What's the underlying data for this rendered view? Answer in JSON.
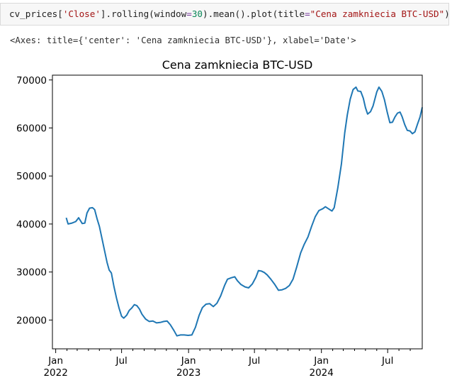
{
  "cell": {
    "code_parts": {
      "p1": "cv_prices[",
      "key": "'Close'",
      "p2": "].rolling(window",
      "eq": "=",
      "num": "30",
      "p3": ").mean().plot(title",
      "eq2": "=",
      "title_str": "\"Cena zamkniecia BTC-USD\"",
      "p4": ")"
    },
    "output": "<Axes: title={'center': 'Cena zamkniecia BTC-USD'}, xlabel='Date'>"
  },
  "colors": {
    "line": "#1f77b4",
    "axis": "#000000",
    "cell_bg": "#f7f7f7"
  },
  "chart_data": {
    "type": "line",
    "title": "Cena zamkniecia BTC-USD",
    "xlabel": "",
    "ylabel": "",
    "x_range": [
      "2021-12-23",
      "2024-10-04"
    ],
    "ylim": [
      14000,
      71000
    ],
    "grid": false,
    "legend": "none",
    "y_ticks": [
      20000,
      30000,
      40000,
      50000,
      60000,
      70000
    ],
    "y_tick_labels": [
      "20000",
      "30000",
      "40000",
      "50000",
      "60000",
      "70000"
    ],
    "x_major_ticks": [
      {
        "date": "2022-01-01",
        "label": "Jan\n2022"
      },
      {
        "date": "2022-07-01",
        "label": "Jul"
      },
      {
        "date": "2023-01-01",
        "label": "Jan\n2023"
      },
      {
        "date": "2023-07-01",
        "label": "Jul"
      },
      {
        "date": "2024-01-01",
        "label": "Jan\n2024"
      },
      {
        "date": "2024-07-01",
        "label": "Jul"
      }
    ],
    "x_minor_ticks": [
      "2022-02-01",
      "2022-03-01",
      "2022-04-01",
      "2022-05-01",
      "2022-06-01",
      "2022-08-01",
      "2022-09-01",
      "2022-10-01",
      "2022-11-01",
      "2022-12-01",
      "2023-02-01",
      "2023-03-01",
      "2023-04-01",
      "2023-05-01",
      "2023-06-01",
      "2023-08-01",
      "2023-09-01",
      "2023-10-01",
      "2023-11-01",
      "2023-12-01",
      "2024-02-01",
      "2024-03-01",
      "2024-04-01",
      "2024-05-01",
      "2024-06-01",
      "2024-08-01",
      "2024-09-01"
    ],
    "series": [
      {
        "points": [
          [
            "2022-01-30",
            41300
          ],
          [
            "2022-02-04",
            40000
          ],
          [
            "2022-02-15",
            40200
          ],
          [
            "2022-02-25",
            40500
          ],
          [
            "2022-03-05",
            41300
          ],
          [
            "2022-03-15",
            40100
          ],
          [
            "2022-03-22",
            40200
          ],
          [
            "2022-03-28",
            42300
          ],
          [
            "2022-04-04",
            43300
          ],
          [
            "2022-04-12",
            43400
          ],
          [
            "2022-04-18",
            43000
          ],
          [
            "2022-04-25",
            41000
          ],
          [
            "2022-05-01",
            39500
          ],
          [
            "2022-05-08",
            37000
          ],
          [
            "2022-05-15",
            34500
          ],
          [
            "2022-05-22",
            32000
          ],
          [
            "2022-05-28",
            30400
          ],
          [
            "2022-06-03",
            29800
          ],
          [
            "2022-06-10",
            27000
          ],
          [
            "2022-06-17",
            24600
          ],
          [
            "2022-06-24",
            22500
          ],
          [
            "2022-07-01",
            20800
          ],
          [
            "2022-07-07",
            20400
          ],
          [
            "2022-07-15",
            21000
          ],
          [
            "2022-07-22",
            22000
          ],
          [
            "2022-07-29",
            22500
          ],
          [
            "2022-08-05",
            23200
          ],
          [
            "2022-08-12",
            23000
          ],
          [
            "2022-08-19",
            22300
          ],
          [
            "2022-08-26",
            21200
          ],
          [
            "2022-09-05",
            20200
          ],
          [
            "2022-09-15",
            19700
          ],
          [
            "2022-09-25",
            19800
          ],
          [
            "2022-10-05",
            19400
          ],
          [
            "2022-10-15",
            19500
          ],
          [
            "2022-10-25",
            19700
          ],
          [
            "2022-11-03",
            19800
          ],
          [
            "2022-11-12",
            19000
          ],
          [
            "2022-11-22",
            17800
          ],
          [
            "2022-11-30",
            16700
          ],
          [
            "2022-12-10",
            16900
          ],
          [
            "2022-12-20",
            16900
          ],
          [
            "2022-12-31",
            16800
          ],
          [
            "2023-01-10",
            16900
          ],
          [
            "2023-01-20",
            18500
          ],
          [
            "2023-01-30",
            21000
          ],
          [
            "2023-02-08",
            22600
          ],
          [
            "2023-02-18",
            23300
          ],
          [
            "2023-02-28",
            23400
          ],
          [
            "2023-03-10",
            22800
          ],
          [
            "2023-03-20",
            23500
          ],
          [
            "2023-03-30",
            25000
          ],
          [
            "2023-04-10",
            27200
          ],
          [
            "2023-04-18",
            28500
          ],
          [
            "2023-04-28",
            28800
          ],
          [
            "2023-05-08",
            29000
          ],
          [
            "2023-05-15",
            28200
          ],
          [
            "2023-05-25",
            27400
          ],
          [
            "2023-06-05",
            26900
          ],
          [
            "2023-06-15",
            26700
          ],
          [
            "2023-06-25",
            27500
          ],
          [
            "2023-07-05",
            28900
          ],
          [
            "2023-07-12",
            30300
          ],
          [
            "2023-07-20",
            30200
          ],
          [
            "2023-07-28",
            29900
          ],
          [
            "2023-08-05",
            29400
          ],
          [
            "2023-08-15",
            28500
          ],
          [
            "2023-08-25",
            27500
          ],
          [
            "2023-09-05",
            26200
          ],
          [
            "2023-09-15",
            26300
          ],
          [
            "2023-09-25",
            26600
          ],
          [
            "2023-10-05",
            27200
          ],
          [
            "2023-10-15",
            28500
          ],
          [
            "2023-10-25",
            31000
          ],
          [
            "2023-11-05",
            34000
          ],
          [
            "2023-11-15",
            35800
          ],
          [
            "2023-11-25",
            37300
          ],
          [
            "2023-12-05",
            39500
          ],
          [
            "2023-12-15",
            41500
          ],
          [
            "2023-12-25",
            42800
          ],
          [
            "2024-01-05",
            43200
          ],
          [
            "2024-01-12",
            43600
          ],
          [
            "2024-01-20",
            43200
          ],
          [
            "2024-01-30",
            42700
          ],
          [
            "2024-02-05",
            43400
          ],
          [
            "2024-02-15",
            47500
          ],
          [
            "2024-02-25",
            52500
          ],
          [
            "2024-03-05",
            59000
          ],
          [
            "2024-03-12",
            62700
          ],
          [
            "2024-03-20",
            66000
          ],
          [
            "2024-03-28",
            68000
          ],
          [
            "2024-04-05",
            68500
          ],
          [
            "2024-04-10",
            67700
          ],
          [
            "2024-04-18",
            67600
          ],
          [
            "2024-04-25",
            66200
          ],
          [
            "2024-05-01",
            64200
          ],
          [
            "2024-05-07",
            62900
          ],
          [
            "2024-05-15",
            63400
          ],
          [
            "2024-05-22",
            64600
          ],
          [
            "2024-06-01",
            67500
          ],
          [
            "2024-06-07",
            68500
          ],
          [
            "2024-06-15",
            67600
          ],
          [
            "2024-06-22",
            65900
          ],
          [
            "2024-06-30",
            63200
          ],
          [
            "2024-07-07",
            61100
          ],
          [
            "2024-07-14",
            61200
          ],
          [
            "2024-07-21",
            62300
          ],
          [
            "2024-07-28",
            63100
          ],
          [
            "2024-08-04",
            63300
          ],
          [
            "2024-08-10",
            62300
          ],
          [
            "2024-08-17",
            60700
          ],
          [
            "2024-08-24",
            59500
          ],
          [
            "2024-08-31",
            59400
          ],
          [
            "2024-09-07",
            58800
          ],
          [
            "2024-09-14",
            59200
          ],
          [
            "2024-09-21",
            60800
          ],
          [
            "2024-09-28",
            62300
          ],
          [
            "2024-10-04",
            64300
          ]
        ]
      }
    ]
  }
}
